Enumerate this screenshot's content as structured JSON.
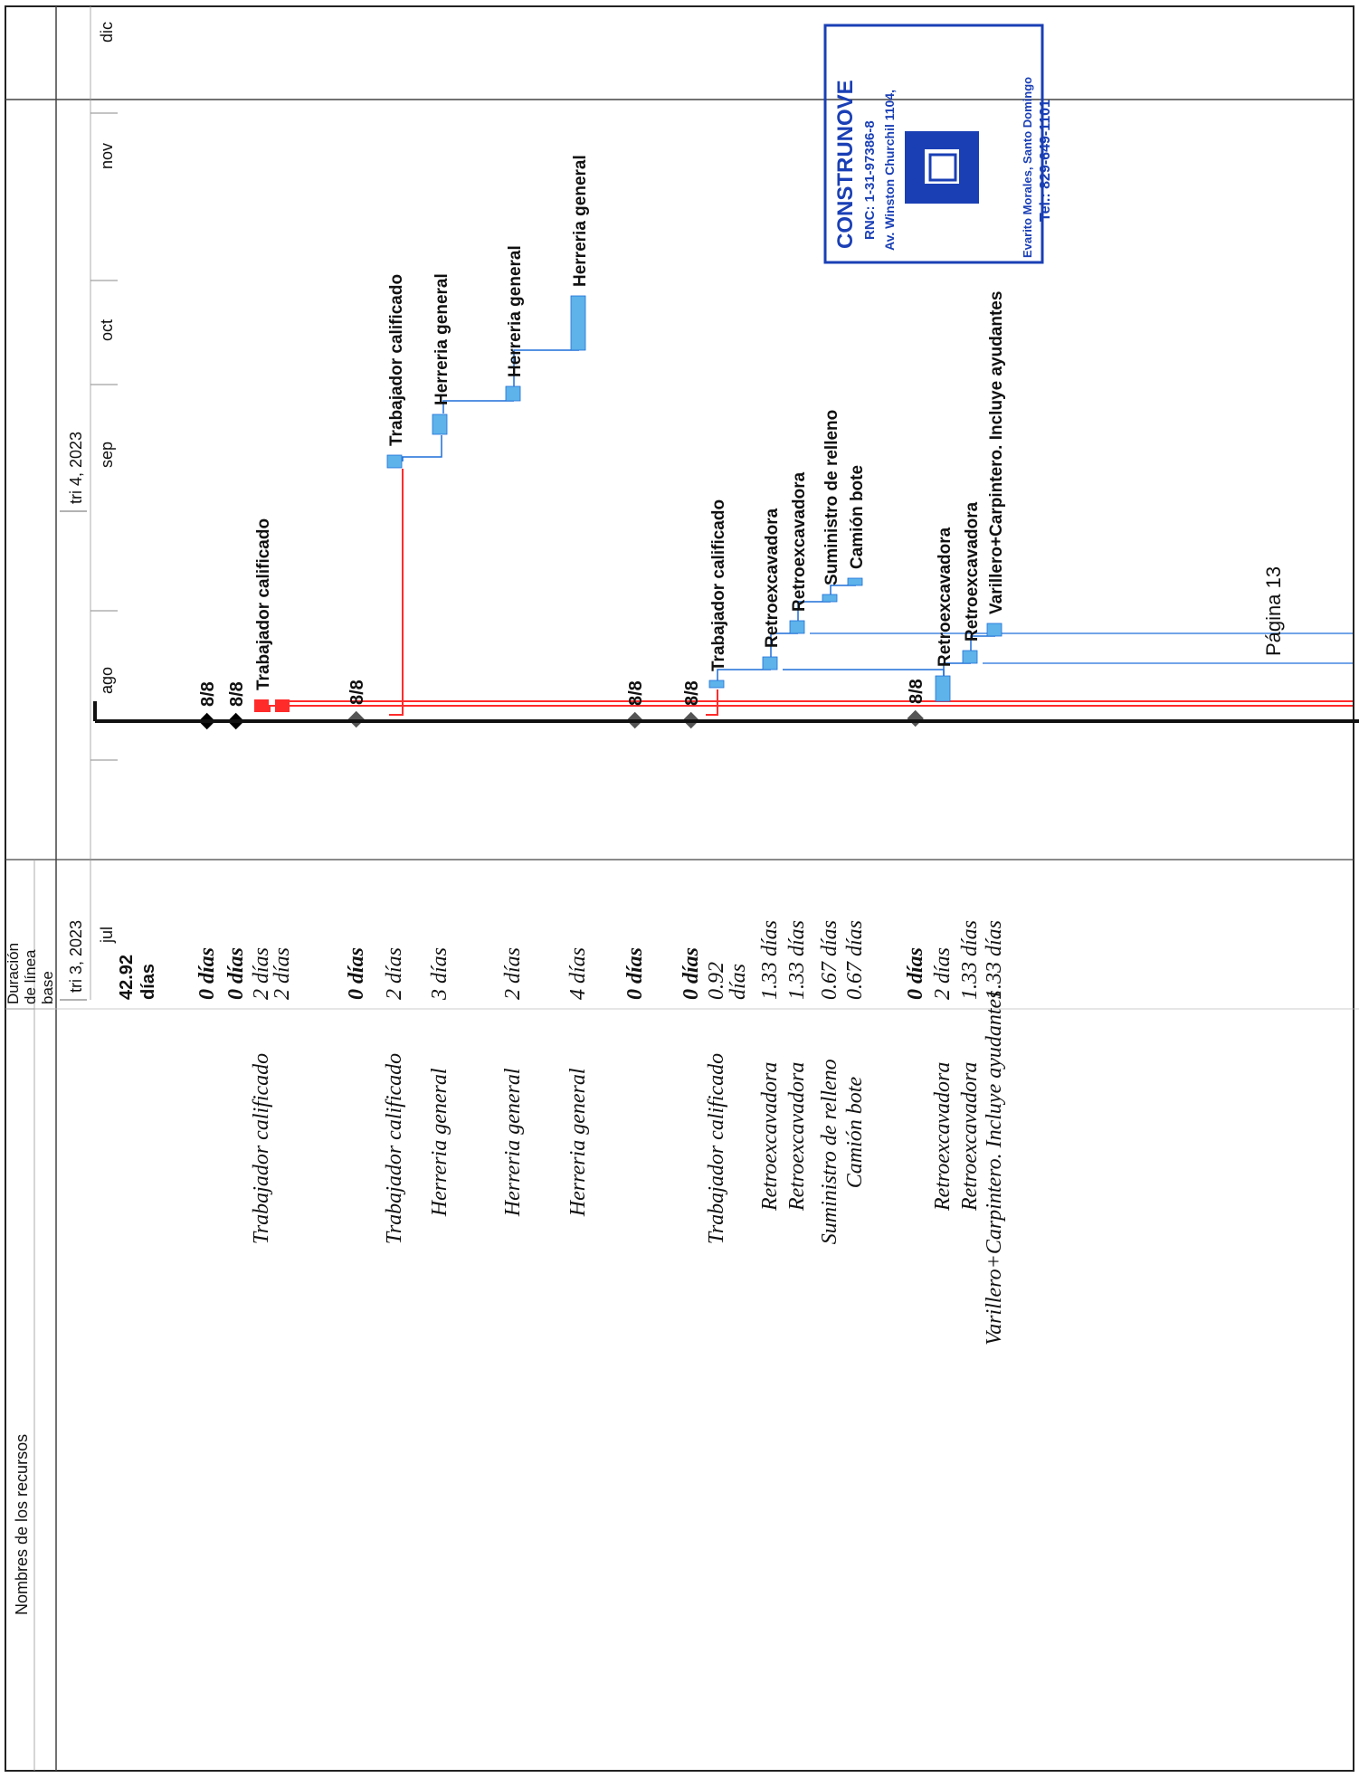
{
  "header": {
    "resources_col": "Nombres de los recursos",
    "baseline_col": [
      "Duración",
      "de línea",
      "base"
    ],
    "quarters": [
      "tri 3, 2023",
      "tri 4, 2023"
    ],
    "months": [
      "jul",
      "ago",
      "sep",
      "oct",
      "nov",
      "dic"
    ]
  },
  "rows": [
    {
      "resource": "",
      "duration": [
        "42.92",
        "días"
      ],
      "duration_style": "bold-sans",
      "bar": {
        "kind": "summary",
        "label": ""
      }
    },
    {
      "resource": "",
      "duration": [
        "0 días"
      ],
      "duration_style": "bold-italic",
      "bar": {
        "kind": "milestone",
        "label": "8/8",
        "color": "#000000"
      }
    },
    {
      "resource": "",
      "duration": [
        "0 días"
      ],
      "duration_style": "bold-italic",
      "bar": {
        "kind": "milestone",
        "label": "8/8",
        "color": "#000000"
      }
    },
    {
      "resource": "Trabajador calificado",
      "duration": [
        "2 días"
      ],
      "duration_style": "italic",
      "bar": {
        "kind": "task",
        "label": "Trabajador calificado",
        "color": "#ff2b2b"
      }
    },
    {
      "resource": "",
      "duration": [
        "2 días"
      ],
      "duration_style": "italic",
      "bar": {
        "kind": "task",
        "label": "",
        "color": "#ff2b2b"
      }
    },
    {
      "resource": "",
      "duration": [
        "0 días"
      ],
      "duration_style": "bold-italic",
      "bar": {
        "kind": "milestone",
        "label": "8/8",
        "color": "#555555"
      }
    },
    {
      "resource": "Trabajador calificado",
      "duration": [
        "2 días"
      ],
      "duration_style": "italic",
      "bar": {
        "kind": "task",
        "label": "Trabajador calificado",
        "color": "#5db3ea"
      }
    },
    {
      "resource": "Herreria general",
      "duration": [
        "3 días"
      ],
      "duration_style": "italic",
      "bar": {
        "kind": "task",
        "label": "Herreria general",
        "color": "#5db3ea"
      }
    },
    {
      "resource": "Herreria general",
      "duration": [
        "2 días"
      ],
      "duration_style": "italic",
      "bar": {
        "kind": "task",
        "label": "Herreria general",
        "color": "#5db3ea"
      }
    },
    {
      "resource": "Herreria general",
      "duration": [
        "4 días"
      ],
      "duration_style": "italic",
      "bar": {
        "kind": "task",
        "label": "Herreria general",
        "color": "#5db3ea"
      }
    },
    {
      "resource": "",
      "duration": [
        "0 días"
      ],
      "duration_style": "bold-italic",
      "bar": {
        "kind": "milestone",
        "label": "8/8",
        "color": "#555555"
      }
    },
    {
      "resource": "",
      "duration": [
        "0 días"
      ],
      "duration_style": "bold-italic",
      "bar": {
        "kind": "milestone",
        "label": "8/8",
        "color": "#555555"
      }
    },
    {
      "resource": "Trabajador calificado",
      "duration": [
        "0.92",
        "días"
      ],
      "duration_style": "italic",
      "bar": {
        "kind": "task",
        "label": "Trabajador calificado",
        "color": "#5db3ea"
      }
    },
    {
      "resource": "Retroexcavadora",
      "duration": [
        "1.33 días"
      ],
      "duration_style": "italic",
      "bar": {
        "kind": "task",
        "label": "Retroexcavadora",
        "color": "#5db3ea"
      }
    },
    {
      "resource": "Retroexcavadora",
      "duration": [
        "1.33 días"
      ],
      "duration_style": "italic",
      "bar": {
        "kind": "task",
        "label": "Retroexcavadora",
        "color": "#5db3ea"
      }
    },
    {
      "resource": "Suministro de relleno",
      "duration": [
        "0.67 días"
      ],
      "duration_style": "italic",
      "bar": {
        "kind": "task",
        "label": "Suministro de relleno",
        "color": "#5db3ea"
      }
    },
    {
      "resource": "Camión bote",
      "duration": [
        "0.67 días"
      ],
      "duration_style": "italic",
      "bar": {
        "kind": "task",
        "label": "Camión bote",
        "color": "#5db3ea"
      }
    },
    {
      "resource": "",
      "duration": [
        "0 días"
      ],
      "duration_style": "bold-italic",
      "bar": {
        "kind": "milestone",
        "label": "8/8",
        "color": "#555555"
      }
    },
    {
      "resource": "Retroexcavadora",
      "duration": [
        "2 días"
      ],
      "duration_style": "italic",
      "bar": {
        "kind": "task",
        "label": "Retroexcavadora",
        "color": "#5db3ea"
      }
    },
    {
      "resource": "Retroexcavadora",
      "duration": [
        "1.33 días"
      ],
      "duration_style": "italic",
      "bar": {
        "kind": "task",
        "label": "Retroexcavadora",
        "color": "#5db3ea"
      }
    },
    {
      "resource": "Varillero+Carpintero. Incluye ayudantes",
      "duration": [
        "1.33 días"
      ],
      "duration_style": "italic",
      "bar": {
        "kind": "task",
        "label": "Varillero+Carpintero. Incluye ayudantes",
        "color": "#5db3ea"
      }
    }
  ],
  "stamp": {
    "tel": "Tel.: 829-649-1101",
    "company": "CONSTRUNOVE",
    "rnc": "RNC: 1-31-97386-8",
    "address1": "Av. Winston Churchil 1104,",
    "address2": "Evarito Morales, Santo Domingo",
    "color": "#1a3fb5"
  },
  "footer": {
    "page": "Página 13"
  },
  "colors": {
    "critical": "#ff2b2b",
    "task": "#5db3ea",
    "link_blue": "#1e6fd9",
    "arrow": "#1a3fb5"
  }
}
